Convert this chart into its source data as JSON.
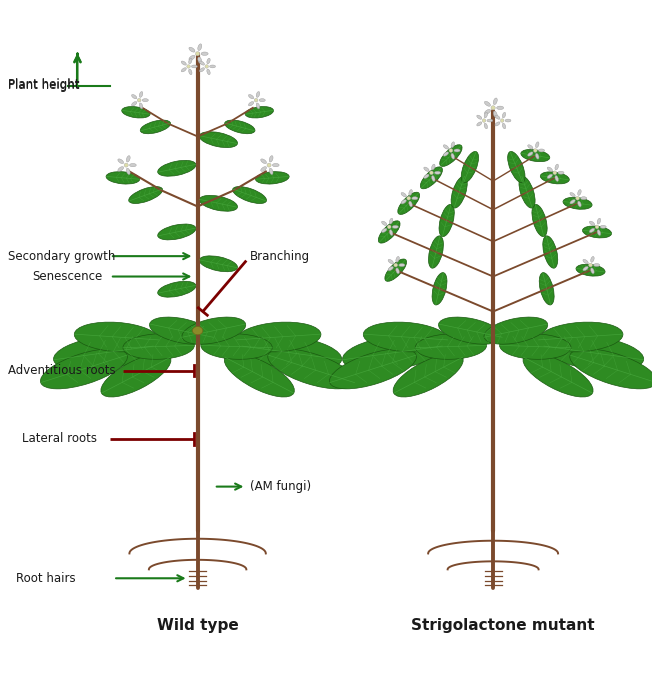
{
  "bg_color": "#ffffff",
  "stem_color": "#7B4A2D",
  "leaf_color": "#2E8B22",
  "leaf_dark_color": "#1A6B10",
  "leaf_edge_color": "#1A5A10",
  "leaf_vein_color": "#4AAA40",
  "flower_petal_color": "#CCCCCC",
  "flower_center_color": "#DDDDAA",
  "arrow_green": "#1A7A1A",
  "arrow_red": "#7B0000",
  "text_color": "#1A1A1A",
  "root_color": "#7B4A2D",
  "bud_color": "#8B8B2A",
  "title_wt": "Wild type",
  "title_sm": "Strigolactone mutant",
  "labels": {
    "plant_height": "Plant height",
    "secondary_growth": "Secondary growth",
    "senescence": "Senescence",
    "branching": "Branching",
    "adventitious_roots": "Adventitious roots",
    "lateral_roots": "Lateral roots",
    "am_fungi": "(AM fungi)",
    "root_hairs": "Root hairs"
  },
  "figsize": [
    6.55,
    6.74
  ],
  "dpi": 100
}
